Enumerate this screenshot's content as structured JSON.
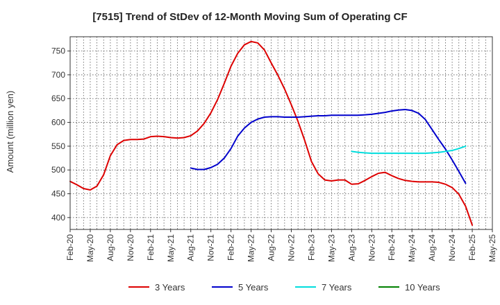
{
  "chart_data": {
    "type": "line",
    "title": "[7515]  Trend of StDev of 12-Month Moving Sum of Operating CF",
    "xlabel": "",
    "ylabel": "Amount (million yen)",
    "ylim": [
      375,
      780
    ],
    "yticks": [
      400,
      450,
      500,
      550,
      600,
      650,
      700,
      750
    ],
    "grid": true,
    "legend_position": "bottom",
    "x_tick_labels": [
      "Feb-20",
      "May-20",
      "Aug-20",
      "Nov-20",
      "Feb-21",
      "May-21",
      "Aug-21",
      "Nov-21",
      "Feb-22",
      "May-22",
      "Aug-22",
      "Nov-22",
      "Feb-23",
      "May-23",
      "Aug-23",
      "Nov-23",
      "Feb-24",
      "May-24",
      "Aug-24",
      "Nov-24",
      "Feb-25",
      "May-25"
    ],
    "series": [
      {
        "name": "3 Years",
        "color": "#dd0000",
        "start_month": 0,
        "values": [
          476,
          469,
          461,
          458,
          466,
          490,
          530,
          553,
          562,
          564,
          564,
          565,
          570,
          571,
          570,
          568,
          567,
          568,
          572,
          582,
          598,
          620,
          648,
          682,
          718,
          745,
          763,
          770,
          767,
          752,
          725,
          699,
          670,
          637,
          602,
          562,
          518,
          492,
          479,
          477,
          479,
          479,
          470,
          471,
          478,
          486,
          493,
          495,
          488,
          482,
          478,
          476,
          475,
          475,
          475,
          474,
          470,
          463,
          449,
          424,
          384
        ]
      },
      {
        "name": "5 Years",
        "color": "#0000cc",
        "start_month": 18,
        "values": [
          504,
          501,
          501,
          505,
          512,
          525,
          545,
          571,
          588,
          600,
          607,
          611,
          612,
          612,
          611,
          611,
          611,
          612,
          613,
          614,
          614,
          615,
          615,
          615,
          615,
          615,
          616,
          617,
          619,
          621,
          624,
          626,
          627,
          625,
          619,
          606,
          585,
          564,
          544,
          521,
          497,
          472
        ]
      },
      {
        "name": "7 Years",
        "color": "#00dddd",
        "start_month": 42,
        "values": [
          539,
          537,
          536,
          535,
          535,
          535,
          535,
          535,
          535,
          535,
          535,
          535,
          536,
          537,
          539,
          541,
          545,
          550
        ]
      },
      {
        "name": "10 Years",
        "color": "#008000",
        "start_month": 0,
        "values": []
      }
    ]
  }
}
